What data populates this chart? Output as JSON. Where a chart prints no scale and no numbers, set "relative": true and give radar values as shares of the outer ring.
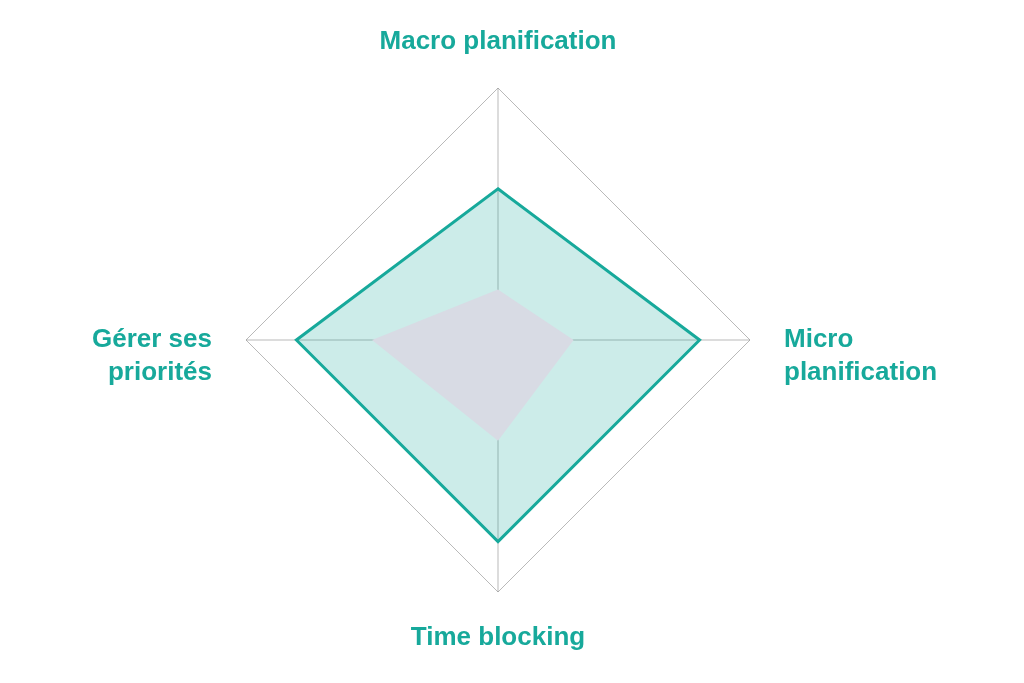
{
  "chart_data": {
    "type": "radar",
    "relative": true,
    "grid": true,
    "categories": [
      "Macro planification",
      "Micro planification",
      "Time blocking",
      "Gérer ses priorités"
    ],
    "series": [
      {
        "color": "#17a99b",
        "values": [
          0.6,
          0.8,
          0.8,
          0.8
        ]
      },
      {
        "color": "#d8dbe4",
        "values": [
          0.2,
          0.3,
          0.4,
          0.5
        ]
      }
    ]
  }
}
